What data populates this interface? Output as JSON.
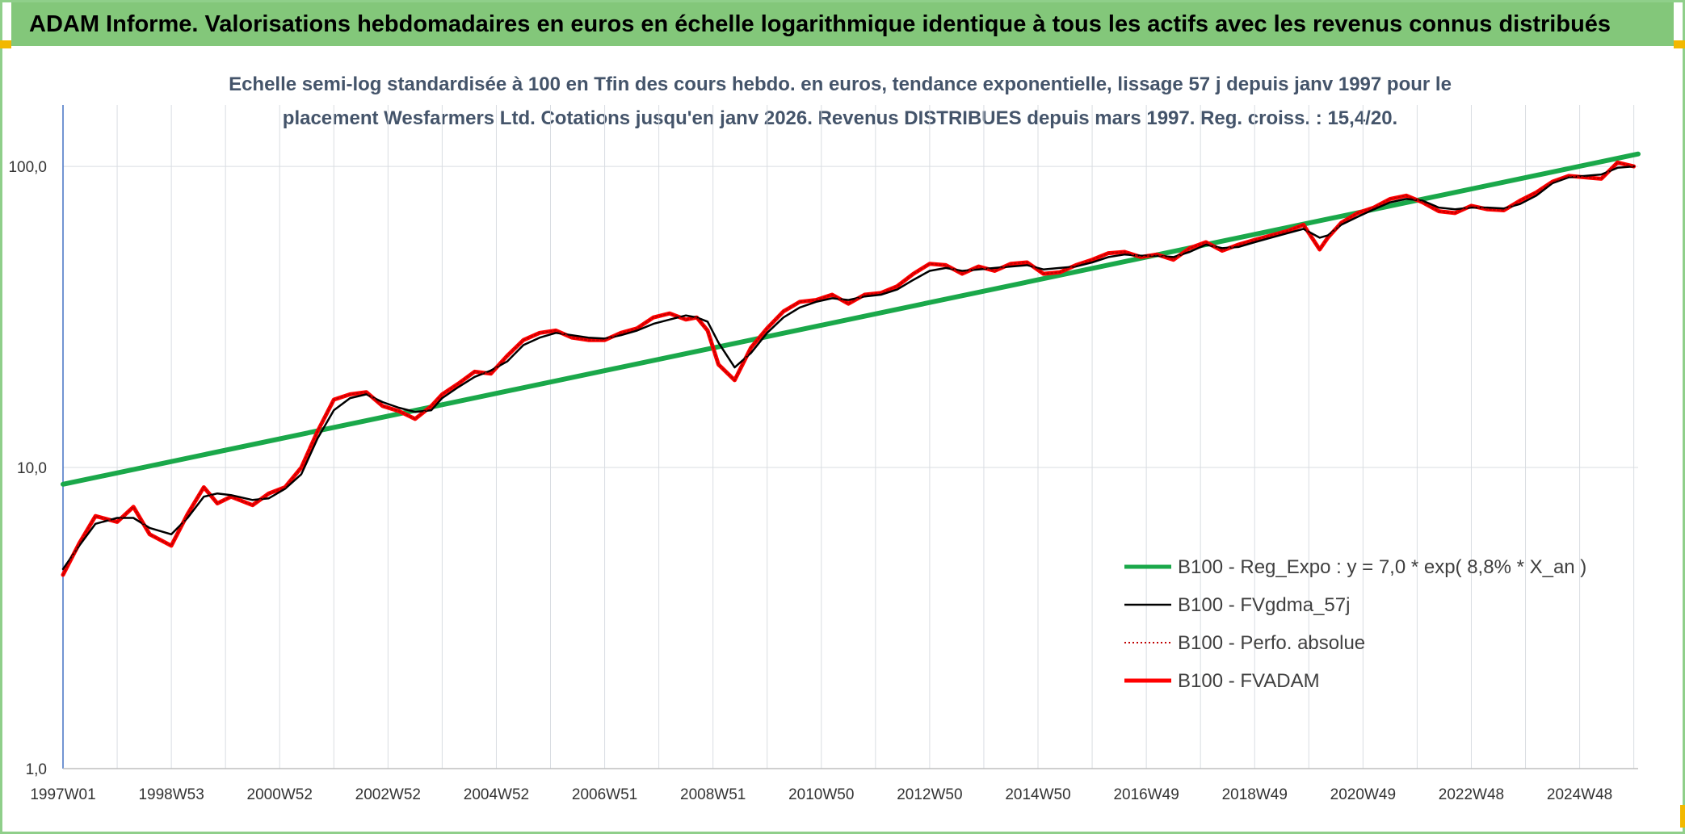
{
  "banner": {
    "title": "ADAM Informe. Valorisations hebdomadaires en euros en échelle logarithmique identique à tous les actifs avec les revenus connus distribués"
  },
  "colors": {
    "banner_bg": "#83c77a",
    "reg_expo": "#1aa84a",
    "fvgdma": "#000000",
    "perfo": "#c00000",
    "fvadam": "#ff0000",
    "grid": "#d9dde2",
    "axis": "#4472c4",
    "title_text": "#44546a"
  },
  "chart_data": {
    "type": "line",
    "title_line1": "Echelle semi-log standardisée à 100 en Tfin des cours hebdo. en euros, tendance exponentielle, lissage 57 j depuis janv 1997 pour le",
    "title_line2": "placement Wesfarmers Ltd. Cotations jusqu'en janv 2026. Revenus DISTRIBUES depuis mars 1997. Reg. croiss. : 15,4/20.",
    "y_scale": "log",
    "ylim": [
      1,
      100
    ],
    "y_ticks": [
      {
        "value": 1,
        "label": "1,0"
      },
      {
        "value": 10,
        "label": "10,0"
      },
      {
        "value": 100,
        "label": "100,0"
      }
    ],
    "xlim": [
      1997.0,
      2026.08
    ],
    "x_ticks": [
      {
        "value": 1997.0,
        "label": "1997W01"
      },
      {
        "value": 1999.0,
        "label": "1998W53"
      },
      {
        "value": 2001.0,
        "label": "2000W52"
      },
      {
        "value": 2003.0,
        "label": "2002W52"
      },
      {
        "value": 2005.0,
        "label": "2004W52"
      },
      {
        "value": 2007.0,
        "label": "2006W51"
      },
      {
        "value": 2009.0,
        "label": "2008W51"
      },
      {
        "value": 2011.0,
        "label": "2010W50"
      },
      {
        "value": 2013.0,
        "label": "2012W50"
      },
      {
        "value": 2015.0,
        "label": "2014W50"
      },
      {
        "value": 2017.0,
        "label": "2016W49"
      },
      {
        "value": 2019.0,
        "label": "2018W49"
      },
      {
        "value": 2021.0,
        "label": "2020W49"
      },
      {
        "value": 2023.0,
        "label": "2022W48"
      },
      {
        "value": 2025.0,
        "label": "2024W48"
      }
    ],
    "grid": true,
    "legend_position": "lower-right",
    "series": [
      {
        "name": "B100 - Reg_Expo : y = 7,0 * exp( 8,8% *  X_an )",
        "style": "thick-green",
        "x": [
          1997.0,
          2026.08
        ],
        "y": [
          8.8,
          110
        ]
      },
      {
        "name": "B100 - FVgdma_57j",
        "style": "thin-black",
        "x": [
          1997.0,
          1997.3,
          1997.6,
          1998.0,
          1998.3,
          1998.6,
          1999.0,
          1999.3,
          1999.6,
          1999.85,
          2000.1,
          2000.5,
          2000.8,
          2001.1,
          2001.4,
          2001.7,
          2002.0,
          2002.3,
          2002.6,
          2002.9,
          2003.2,
          2003.5,
          2003.8,
          2004.0,
          2004.3,
          2004.6,
          2004.9,
          2005.2,
          2005.5,
          2005.8,
          2006.1,
          2006.4,
          2006.7,
          2007.0,
          2007.3,
          2007.6,
          2007.9,
          2008.2,
          2008.5,
          2008.7,
          2008.9,
          2009.1,
          2009.4,
          2009.7,
          2010.0,
          2010.3,
          2010.6,
          2010.9,
          2011.2,
          2011.5,
          2011.8,
          2012.1,
          2012.4,
          2012.7,
          2013.0,
          2013.3,
          2013.6,
          2013.9,
          2014.2,
          2014.5,
          2014.8,
          2015.1,
          2015.4,
          2015.7,
          2016.0,
          2016.3,
          2016.6,
          2016.9,
          2017.2,
          2017.5,
          2017.8,
          2018.1,
          2018.4,
          2018.7,
          2019.0,
          2019.3,
          2019.6,
          2019.9,
          2020.2,
          2020.35,
          2020.6,
          2020.9,
          2021.2,
          2021.5,
          2021.8,
          2022.1,
          2022.4,
          2022.7,
          2023.0,
          2023.3,
          2023.6,
          2023.9,
          2024.2,
          2024.5,
          2024.8,
          2025.1,
          2025.4,
          2025.7,
          2026.0
        ],
        "y": [
          4.6,
          5.5,
          6.5,
          6.8,
          6.8,
          6.3,
          6.0,
          6.8,
          8.0,
          8.2,
          8.1,
          7.8,
          7.9,
          8.5,
          9.5,
          12.5,
          15.5,
          17.0,
          17.5,
          16.5,
          15.8,
          15.3,
          15.5,
          17.0,
          18.5,
          20.0,
          21.0,
          22.5,
          25.5,
          27.0,
          28.0,
          27.5,
          27.0,
          26.8,
          27.5,
          28.5,
          30.0,
          31.0,
          32.0,
          31.5,
          30.5,
          26.0,
          21.5,
          24.0,
          28.0,
          31.5,
          34.0,
          35.5,
          36.5,
          36.0,
          37.0,
          37.5,
          39.0,
          42.0,
          45.0,
          46.0,
          45.0,
          45.5,
          46.0,
          46.5,
          47.0,
          45.5,
          46.0,
          46.5,
          48.0,
          50.0,
          51.0,
          50.5,
          50.5,
          50.0,
          52.0,
          55.0,
          53.5,
          54.0,
          56.0,
          58.0,
          60.0,
          62.0,
          58.0,
          59.0,
          64.0,
          68.0,
          72.0,
          76.0,
          78.0,
          77.0,
          73.0,
          72.0,
          73.0,
          73.0,
          72.5,
          75.0,
          80.0,
          88.0,
          92.0,
          93.0,
          94.0,
          99.0,
          100.0
        ]
      },
      {
        "name": "B100 - Perfo. absolue",
        "style": "dotted-darkred",
        "x": [
          1997.0,
          1997.3,
          1997.6,
          1998.0,
          1998.3,
          1998.6,
          1999.0,
          1999.3,
          1999.6,
          1999.85,
          2000.1,
          2000.5,
          2000.8,
          2001.1,
          2001.4,
          2001.7,
          2002.0,
          2002.3,
          2002.6,
          2002.9,
          2003.2,
          2003.5,
          2003.8,
          2004.0,
          2004.3,
          2004.6,
          2004.9,
          2005.2,
          2005.5,
          2005.8,
          2006.1,
          2006.4,
          2006.7,
          2007.0,
          2007.3,
          2007.6,
          2007.9,
          2008.2,
          2008.5,
          2008.7,
          2008.9,
          2009.1,
          2009.4,
          2009.7,
          2010.0,
          2010.3,
          2010.6,
          2010.9,
          2011.2,
          2011.5,
          2011.8,
          2012.1,
          2012.4,
          2012.7,
          2013.0,
          2013.3,
          2013.6,
          2013.9,
          2014.2,
          2014.5,
          2014.8,
          2015.1,
          2015.4,
          2015.7,
          2016.0,
          2016.3,
          2016.6,
          2016.9,
          2017.2,
          2017.5,
          2017.8,
          2018.1,
          2018.4,
          2018.7,
          2019.0,
          2019.3,
          2019.6,
          2019.9,
          2020.2,
          2020.35,
          2020.6,
          2020.9,
          2021.2,
          2021.5,
          2021.8,
          2022.1,
          2022.4,
          2022.7,
          2023.0,
          2023.3,
          2023.6,
          2023.9,
          2024.2,
          2024.5,
          2024.8,
          2025.1,
          2025.4,
          2025.7,
          2026.0
        ],
        "y": [
          4.4,
          5.6,
          6.9,
          6.6,
          7.4,
          6.0,
          5.5,
          7.0,
          8.6,
          7.6,
          8.0,
          7.5,
          8.2,
          8.6,
          10.0,
          13.2,
          16.8,
          17.5,
          17.8,
          16.0,
          15.4,
          14.5,
          16.0,
          17.5,
          19.0,
          20.8,
          20.5,
          23.5,
          26.5,
          28.0,
          28.5,
          27.0,
          26.5,
          26.5,
          28.0,
          29.0,
          31.5,
          32.5,
          31.0,
          31.5,
          28.5,
          22.0,
          19.5,
          25.0,
          29.0,
          33.0,
          35.5,
          36.0,
          37.5,
          35.0,
          37.5,
          38.0,
          40.0,
          44.0,
          47.5,
          47.0,
          44.0,
          46.5,
          45.0,
          47.5,
          48.0,
          44.0,
          44.5,
          47.0,
          49.0,
          51.5,
          52.0,
          50.0,
          51.0,
          49.0,
          53.5,
          56.0,
          52.5,
          55.0,
          57.0,
          59.0,
          61.0,
          64.0,
          53.0,
          58.0,
          65.0,
          70.0,
          73.0,
          78.0,
          80.0,
          76.0,
          71.0,
          70.0,
          74.0,
          72.0,
          71.5,
          77.0,
          82.0,
          89.0,
          93.0,
          92.0,
          91.0,
          103.0,
          100.0
        ]
      },
      {
        "name": "B100 - FVADAM",
        "style": "thick-red",
        "x": [
          1997.0,
          1997.3,
          1997.6,
          1998.0,
          1998.3,
          1998.6,
          1999.0,
          1999.3,
          1999.6,
          1999.85,
          2000.1,
          2000.5,
          2000.8,
          2001.1,
          2001.4,
          2001.7,
          2002.0,
          2002.3,
          2002.6,
          2002.9,
          2003.2,
          2003.5,
          2003.8,
          2004.0,
          2004.3,
          2004.6,
          2004.9,
          2005.2,
          2005.5,
          2005.8,
          2006.1,
          2006.4,
          2006.7,
          2007.0,
          2007.3,
          2007.6,
          2007.9,
          2008.2,
          2008.5,
          2008.7,
          2008.9,
          2009.1,
          2009.4,
          2009.7,
          2010.0,
          2010.3,
          2010.6,
          2010.9,
          2011.2,
          2011.5,
          2011.8,
          2012.1,
          2012.4,
          2012.7,
          2013.0,
          2013.3,
          2013.6,
          2013.9,
          2014.2,
          2014.5,
          2014.8,
          2015.1,
          2015.4,
          2015.7,
          2016.0,
          2016.3,
          2016.6,
          2016.9,
          2017.2,
          2017.5,
          2017.8,
          2018.1,
          2018.4,
          2018.7,
          2019.0,
          2019.3,
          2019.6,
          2019.9,
          2020.2,
          2020.35,
          2020.6,
          2020.9,
          2021.2,
          2021.5,
          2021.8,
          2022.1,
          2022.4,
          2022.7,
          2023.0,
          2023.3,
          2023.6,
          2023.9,
          2024.2,
          2024.5,
          2024.8,
          2025.1,
          2025.4,
          2025.7,
          2026.0
        ],
        "y": [
          4.4,
          5.6,
          6.9,
          6.6,
          7.4,
          6.0,
          5.5,
          7.0,
          8.6,
          7.6,
          8.0,
          7.5,
          8.2,
          8.6,
          10.0,
          13.2,
          16.8,
          17.5,
          17.8,
          16.0,
          15.4,
          14.5,
          16.0,
          17.5,
          19.0,
          20.8,
          20.5,
          23.5,
          26.5,
          28.0,
          28.5,
          27.0,
          26.5,
          26.5,
          28.0,
          29.0,
          31.5,
          32.5,
          31.0,
          31.5,
          28.5,
          22.0,
          19.5,
          25.0,
          29.0,
          33.0,
          35.5,
          36.0,
          37.5,
          35.0,
          37.5,
          38.0,
          40.0,
          44.0,
          47.5,
          47.0,
          44.0,
          46.5,
          45.0,
          47.5,
          48.0,
          44.0,
          44.5,
          47.0,
          49.0,
          51.5,
          52.0,
          50.0,
          51.0,
          49.0,
          53.5,
          56.0,
          52.5,
          55.0,
          57.0,
          59.0,
          61.0,
          64.0,
          53.0,
          58.0,
          65.0,
          70.0,
          73.0,
          78.0,
          80.0,
          76.0,
          71.0,
          70.0,
          74.0,
          72.0,
          71.5,
          77.0,
          82.0,
          89.0,
          93.0,
          92.0,
          91.0,
          103.0,
          100.0
        ]
      }
    ]
  }
}
